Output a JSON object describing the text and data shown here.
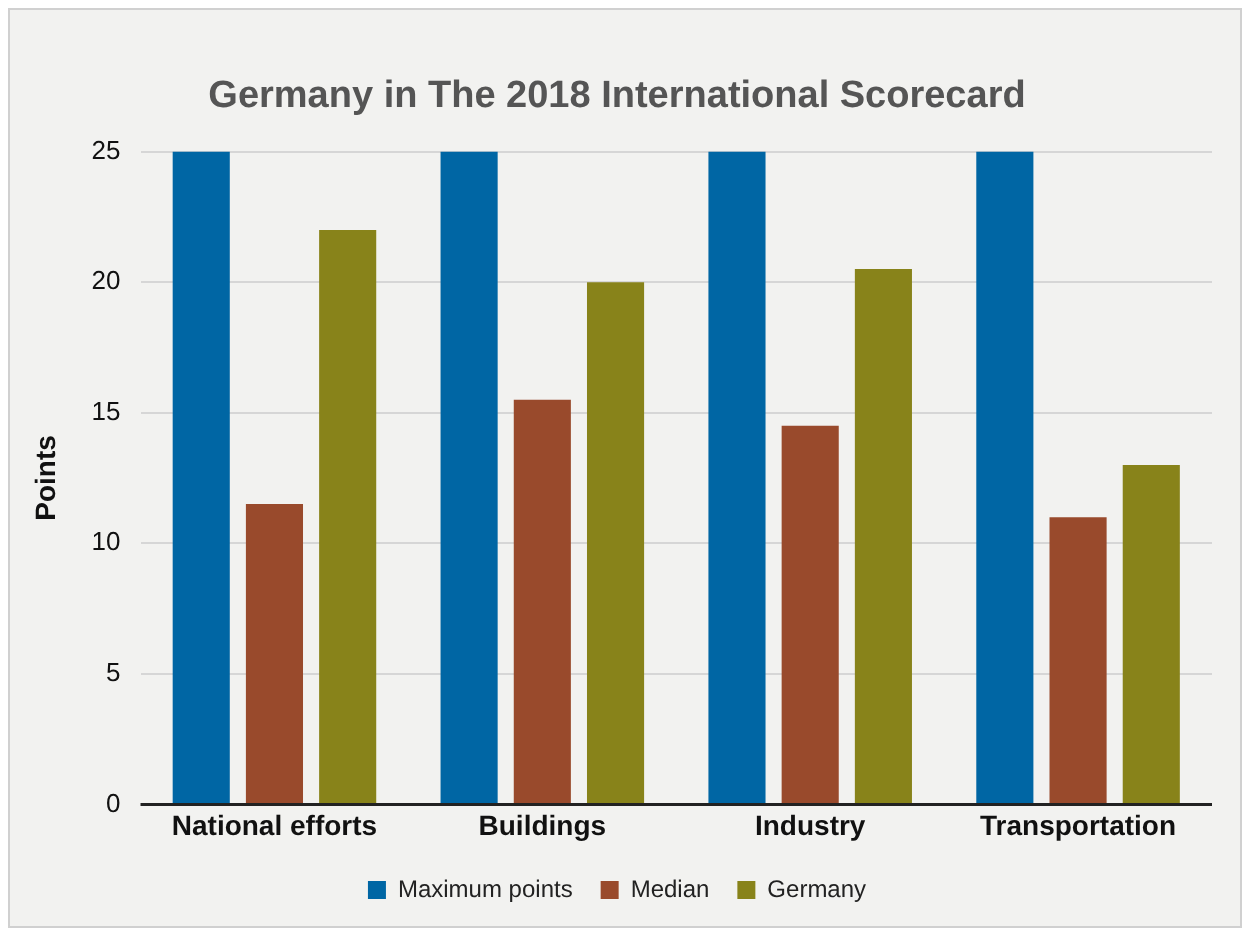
{
  "chart_data": {
    "type": "bar",
    "title": "Germany in The 2018 International Scorecard",
    "ylabel": "Points",
    "categories": [
      "National efforts",
      "Buildings",
      "Industry",
      "Transportation"
    ],
    "series": [
      {
        "name": "Maximum points",
        "color": "#0066a4",
        "values": [
          25,
          25,
          25,
          25
        ]
      },
      {
        "name": "Median",
        "color": "#994a2c",
        "values": [
          11.5,
          15.5,
          14.5,
          11
        ]
      },
      {
        "name": "Germany",
        "color": "#88831a",
        "values": [
          22,
          20,
          20.5,
          13
        ]
      }
    ],
    "ylim": [
      0,
      25
    ],
    "yticks": [
      0,
      5,
      10,
      15,
      20,
      25
    ],
    "grid": "y",
    "legend": "bottom"
  }
}
